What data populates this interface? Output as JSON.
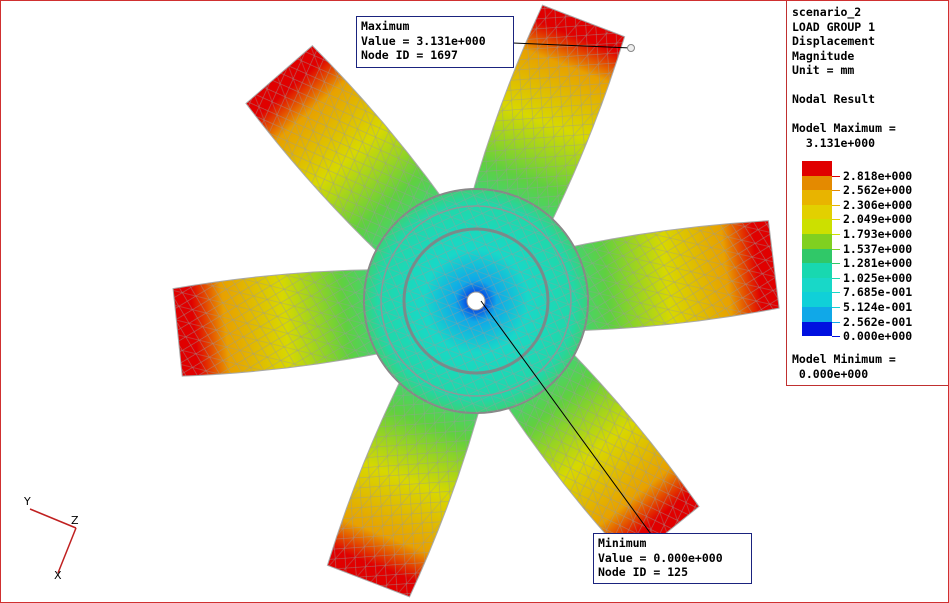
{
  "legend": {
    "lines": [
      "scenario_2",
      "LOAD GROUP 1",
      "Displacement",
      "Magnitude",
      "Unit = mm",
      "",
      "Nodal Result",
      "",
      "Model Maximum =",
      "  3.131e+000"
    ],
    "scale_labels": [
      "2.818e+000",
      "2.562e+000",
      "2.306e+000",
      "2.049e+000",
      "1.793e+000",
      "1.537e+000",
      "1.281e+000",
      "1.025e+000",
      "7.685e-001",
      "5.124e-001",
      "2.562e-001",
      "0.000e+000"
    ],
    "band_colors": [
      "#e00000",
      "#e48a00",
      "#e8b400",
      "#e2d000",
      "#cce000",
      "#80d020",
      "#30c868",
      "#18d8b0",
      "#18d8c8",
      "#10d0d8",
      "#10a8e8",
      "#0010e0"
    ],
    "min_title": "Model Minimum =",
    "min_value": " 0.000e+000"
  },
  "maximum": {
    "title": "Maximum",
    "value": "Value = 3.131e+000",
    "node": "Node ID = 1697"
  },
  "minimum": {
    "title": "Minimum",
    "value": "Value = 0.000e+000",
    "node": "Node ID = 125"
  },
  "triad": {
    "y": "Y",
    "z": "Z",
    "x": "X"
  }
}
